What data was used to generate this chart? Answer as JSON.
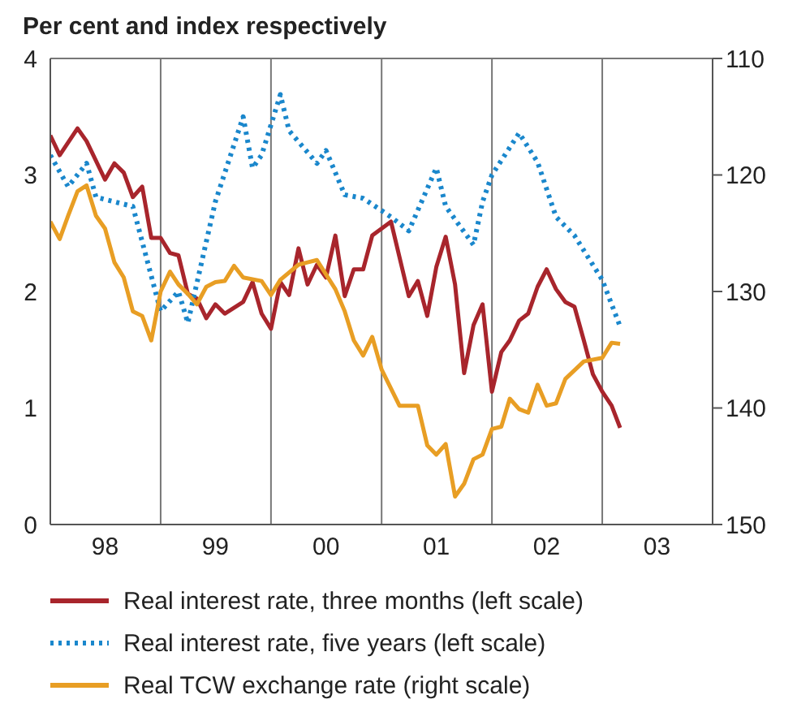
{
  "chart_data": {
    "type": "line",
    "subtitle": "Per cent and index respectively",
    "xlim": [
      "1998-01",
      "2004-01"
    ],
    "xticks": [
      {
        "value": "1998-01",
        "label": null
      },
      {
        "value": "1998-07",
        "label": "98"
      },
      {
        "value": "1999-01",
        "label": null
      },
      {
        "value": "1999-07",
        "label": "99"
      },
      {
        "value": "2000-01",
        "label": null
      },
      {
        "value": "2000-07",
        "label": "00"
      },
      {
        "value": "2001-01",
        "label": null
      },
      {
        "value": "2001-07",
        "label": "01"
      },
      {
        "value": "2002-01",
        "label": null
      },
      {
        "value": "2002-07",
        "label": "02"
      },
      {
        "value": "2003-01",
        "label": null
      },
      {
        "value": "2003-07",
        "label": "03"
      },
      {
        "value": "2004-01",
        "label": null
      }
    ],
    "ylim": [
      0,
      4
    ],
    "yticks": [
      0,
      1,
      2,
      3,
      4
    ],
    "y2lim": [
      150,
      110
    ],
    "y2ticks": [
      110,
      120,
      130,
      140,
      150
    ],
    "grid": true,
    "legend": "bottom",
    "marker": "none",
    "series": [
      {
        "name": "Real interest rate, three months (left scale)",
        "color": "#a8252c",
        "line_style": "solid",
        "x": [
          "1998-01",
          "1998-02",
          "1998-04",
          "1998-05",
          "1998-07",
          "1998-08",
          "1998-09",
          "1998-10",
          "1998-11",
          "1998-12",
          "1999-01",
          "1999-02",
          "1999-03",
          "1999-04",
          "1999-05",
          "1999-06",
          "1999-07",
          "1999-08",
          "1999-10",
          "1999-11",
          "1999-12",
          "2000-01",
          "2000-02",
          "2000-03",
          "2000-04",
          "2000-05",
          "2000-06",
          "2000-07",
          "2000-08",
          "2000-09",
          "2000-10",
          "2000-11",
          "2000-12",
          "2001-02",
          "2001-04",
          "2001-05",
          "2001-06",
          "2001-07",
          "2001-08",
          "2001-09",
          "2001-10",
          "2001-11",
          "2001-12",
          "2002-01",
          "2002-02",
          "2002-03",
          "2002-04",
          "2002-05",
          "2002-06",
          "2002-07",
          "2002-08",
          "2002-09",
          "2002-10",
          "2002-11",
          "2002-12",
          "2003-01",
          "2003-02",
          "2003-03"
        ],
        "values": [
          3.34,
          3.17,
          3.4,
          3.29,
          2.96,
          3.1,
          3.02,
          2.81,
          2.9,
          2.46,
          2.46,
          2.33,
          2.31,
          1.98,
          1.94,
          1.77,
          1.89,
          1.81,
          1.91,
          2.08,
          1.81,
          1.68,
          2.08,
          1.97,
          2.37,
          2.06,
          2.23,
          2.12,
          2.48,
          1.96,
          2.19,
          2.19,
          2.48,
          2.6,
          1.96,
          2.09,
          1.79,
          2.21,
          2.47,
          2.06,
          1.3,
          1.71,
          1.89,
          1.14,
          1.48,
          1.58,
          1.75,
          1.81,
          2.04,
          2.19,
          2.02,
          1.91,
          1.87,
          1.58,
          1.29,
          1.14,
          1.02,
          0.83
        ]
      },
      {
        "name": "Real interest rate, five years (left scale)",
        "color": "#1a87cc",
        "line_style": "dotted",
        "x": [
          "1998-01",
          "1998-03",
          "1998-05",
          "1998-06",
          "1998-10",
          "1999-01",
          "1999-03",
          "1999-04",
          "1999-07",
          "1999-10",
          "1999-11",
          "1999-12",
          "2000-02",
          "2000-03",
          "2000-06",
          "2000-07",
          "2000-09",
          "2000-11",
          "2001-02",
          "2001-04",
          "2001-07",
          "2001-08",
          "2001-11",
          "2001-12",
          "2002-01",
          "2002-04",
          "2002-06",
          "2002-08",
          "2002-10",
          "2003-01",
          "2003-03"
        ],
        "values": [
          3.17,
          2.9,
          3.1,
          2.81,
          2.73,
          1.83,
          2.0,
          1.73,
          2.77,
          3.5,
          3.06,
          3.17,
          3.69,
          3.38,
          3.1,
          3.21,
          2.83,
          2.8,
          2.64,
          2.52,
          3.06,
          2.73,
          2.4,
          2.77,
          3.0,
          3.36,
          3.11,
          2.64,
          2.48,
          2.1,
          1.7
        ]
      },
      {
        "name": "Real TCW exchange rate (right scale)",
        "color": "#e89e24",
        "line_style": "solid",
        "axis": "y2",
        "x": [
          "1998-01",
          "1998-02",
          "1998-03",
          "1998-04",
          "1998-05",
          "1998-06",
          "1998-07",
          "1998-08",
          "1998-09",
          "1998-10",
          "1998-11",
          "1998-12",
          "1999-01",
          "1999-02",
          "1999-03",
          "1999-04",
          "1999-05",
          "1999-06",
          "1999-07",
          "1999-08",
          "1999-09",
          "1999-10",
          "1999-12",
          "2000-01",
          "2000-02",
          "2000-04",
          "2000-05",
          "2000-06",
          "2000-08",
          "2000-09",
          "2000-10",
          "2000-11",
          "2000-12",
          "2001-01",
          "2001-03",
          "2001-04",
          "2001-05",
          "2001-06",
          "2001-07",
          "2001-08",
          "2001-09",
          "2001-10",
          "2001-11",
          "2001-12",
          "2002-01",
          "2002-02",
          "2002-03",
          "2002-04",
          "2002-05",
          "2002-06",
          "2002-07",
          "2002-08",
          "2002-09",
          "2002-11",
          "2003-01",
          "2003-02",
          "2003-03"
        ],
        "values": [
          124.0,
          125.5,
          123.5,
          121.4,
          120.9,
          123.5,
          124.6,
          127.5,
          128.8,
          131.7,
          132.1,
          134.2,
          130.0,
          128.3,
          129.4,
          130.2,
          131.1,
          129.6,
          129.2,
          129.1,
          127.8,
          128.8,
          129.1,
          130.3,
          129.0,
          127.7,
          127.5,
          127.3,
          129.8,
          131.7,
          134.2,
          135.5,
          133.9,
          136.7,
          139.8,
          139.8,
          139.8,
          143.2,
          144.0,
          143.1,
          147.6,
          146.5,
          144.4,
          144.0,
          141.8,
          141.6,
          139.2,
          140.1,
          140.4,
          138.0,
          139.8,
          139.6,
          137.5,
          136.0,
          135.7,
          134.4,
          134.5
        ]
      }
    ]
  }
}
